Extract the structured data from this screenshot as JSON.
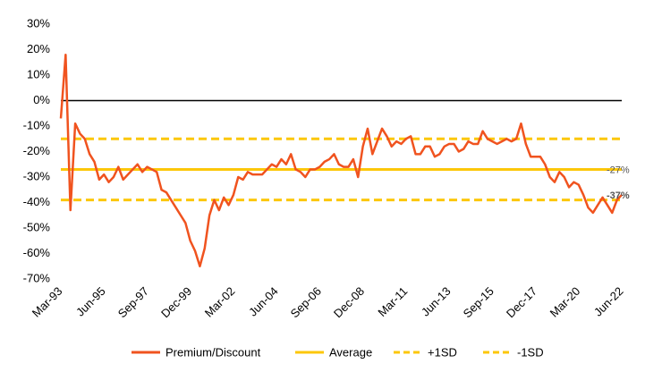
{
  "chart_data": {
    "type": "line",
    "categories": [
      "Mar-93",
      null,
      null,
      null,
      null,
      null,
      null,
      null,
      null,
      "Jun-95",
      null,
      null,
      null,
      null,
      null,
      null,
      null,
      null,
      "Sep-97",
      null,
      null,
      null,
      null,
      null,
      null,
      null,
      null,
      "Dec-99",
      null,
      null,
      null,
      null,
      null,
      null,
      null,
      null,
      "Mar-02",
      null,
      null,
      null,
      null,
      null,
      null,
      null,
      null,
      "Jun-04",
      null,
      null,
      null,
      null,
      null,
      null,
      null,
      null,
      "Sep-06",
      null,
      null,
      null,
      null,
      null,
      null,
      null,
      null,
      "Dec-08",
      null,
      null,
      null,
      null,
      null,
      null,
      null,
      null,
      "Mar-11",
      null,
      null,
      null,
      null,
      null,
      null,
      null,
      null,
      "Jun-13",
      null,
      null,
      null,
      null,
      null,
      null,
      null,
      null,
      "Sep-15",
      null,
      null,
      null,
      null,
      null,
      null,
      null,
      null,
      "Dec-17",
      null,
      null,
      null,
      null,
      null,
      null,
      null,
      null,
      "Mar-20",
      null,
      null,
      null,
      null,
      null,
      null,
      null,
      null,
      "Jun-22"
    ],
    "series": [
      {
        "name": "Premium/Discount",
        "color": "#f0531f",
        "values": [
          -7,
          18,
          -43,
          -9,
          -13,
          -15,
          -21,
          -24,
          -31,
          -29,
          -32,
          -30,
          -26,
          -31,
          -29,
          -27,
          -25,
          -28,
          -26,
          -27,
          -28,
          -35,
          -36,
          -39,
          -42,
          -45,
          -48,
          -55,
          -59,
          -65,
          -58,
          -45,
          -39,
          -43,
          -38,
          -41,
          -37,
          -30,
          -31,
          -28,
          -29,
          -29,
          -29,
          -27,
          -25,
          -26,
          -23,
          -25,
          -21,
          -27,
          -28,
          -30,
          -27,
          -27,
          -26,
          -24,
          -23,
          -21,
          -25,
          -26,
          -26,
          -23,
          -30,
          -18,
          -11,
          -21,
          -16,
          -11,
          -14,
          -18,
          -16,
          -17,
          -15,
          -14,
          -21,
          -21,
          -18,
          -18,
          -22,
          -21,
          -18,
          -17,
          -17,
          -20,
          -19,
          -16,
          -17,
          -17,
          -12,
          -15,
          -16,
          -17,
          -16,
          -15,
          -16,
          -15,
          -9,
          -17,
          -22,
          -22,
          -22,
          -25,
          -30,
          -32,
          -28,
          -30,
          -34,
          -32,
          -33,
          -37,
          -42,
          -44,
          -41,
          -38,
          -41,
          -44,
          -39,
          -37
        ]
      }
    ],
    "reference_lines": [
      {
        "name": "Average",
        "value": -27,
        "color": "#fcc70a",
        "style": "solid"
      },
      {
        "name": "+1SD",
        "value": -15,
        "color": "#fcc70a",
        "style": "dashed"
      },
      {
        "name": "-1SD",
        "value": -39,
        "color": "#fcc70a",
        "style": "dashed"
      }
    ],
    "annotations": [
      {
        "text": "-27%",
        "value": -27,
        "bold": false
      },
      {
        "text": "-37%",
        "value": -37,
        "bold": true
      }
    ],
    "ylim": [
      -70,
      30
    ],
    "yticks": [
      {
        "value": -70,
        "label": "-70%"
      },
      {
        "value": -60,
        "label": "-60%"
      },
      {
        "value": -50,
        "label": "-50%"
      },
      {
        "value": -40,
        "label": "-40%"
      },
      {
        "value": -30,
        "label": "-30%"
      },
      {
        "value": -20,
        "label": "-20%"
      },
      {
        "value": -10,
        "label": "-10%"
      },
      {
        "value": 0,
        "label": "0%"
      },
      {
        "value": 10,
        "label": "10%"
      },
      {
        "value": 20,
        "label": "20%"
      },
      {
        "value": 30,
        "label": "30%"
      }
    ],
    "zero_line": true,
    "grid": false
  }
}
